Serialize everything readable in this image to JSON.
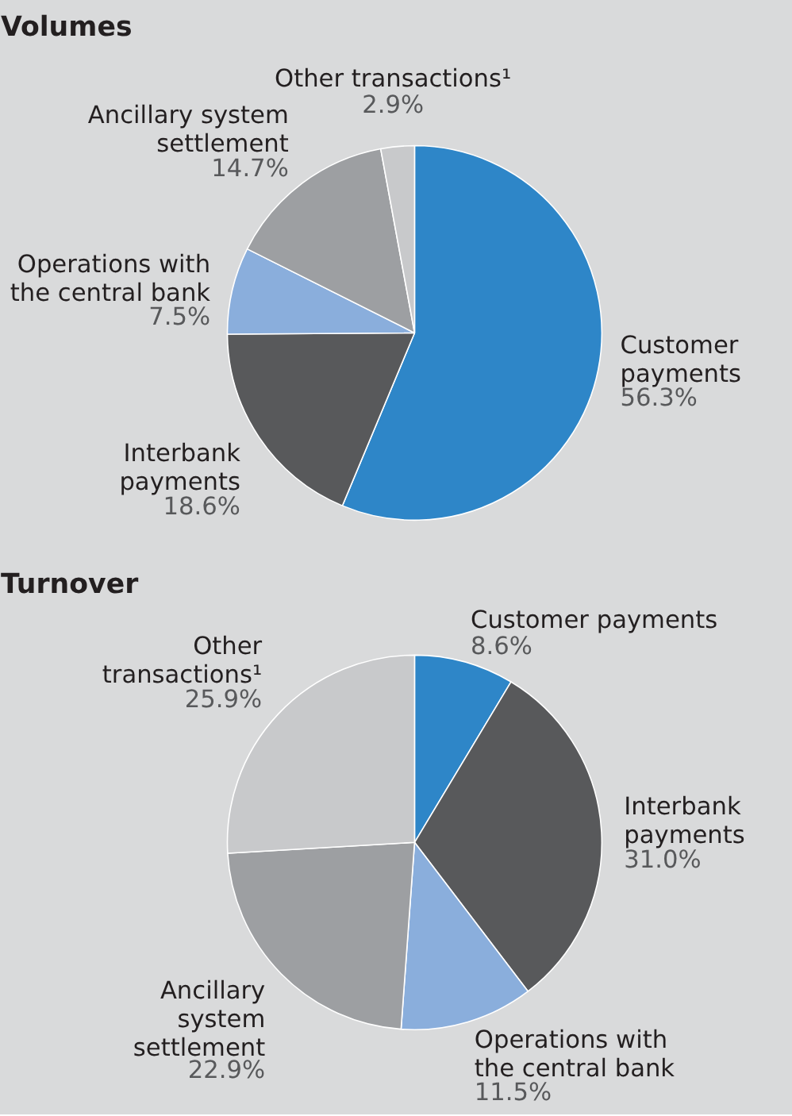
{
  "chart_data": [
    {
      "type": "pie",
      "title": "Volumes",
      "categories": [
        "Customer\npayments",
        "Interbank\npayments",
        "Operations with\nthe central bank",
        "Ancillary system\nsettlement",
        "Other transactions¹"
      ],
      "values": [
        56.3,
        18.6,
        7.5,
        14.7,
        2.9
      ],
      "value_labels": [
        "56.3%",
        "18.6%",
        "7.5%",
        "14.7%",
        "2.9%"
      ],
      "colors": [
        "#2e86c8",
        "#58595b",
        "#8aaedc",
        "#9d9fa2",
        "#c8c9cb"
      ]
    },
    {
      "type": "pie",
      "title": "Turnover",
      "categories": [
        "Customer payments",
        "Interbank\npayments",
        "Operations with\nthe central bank",
        "Ancillary\nsystem\nsettlement",
        "Other\ntransactions¹"
      ],
      "values": [
        8.6,
        31.0,
        11.5,
        22.9,
        25.9
      ],
      "value_labels": [
        "8.6%",
        "31.0%",
        "11.5%",
        "22.9%",
        "25.9%"
      ],
      "colors": [
        "#2e86c8",
        "#58595b",
        "#8aaedc",
        "#9d9fa2",
        "#c8c9cb"
      ]
    }
  ]
}
